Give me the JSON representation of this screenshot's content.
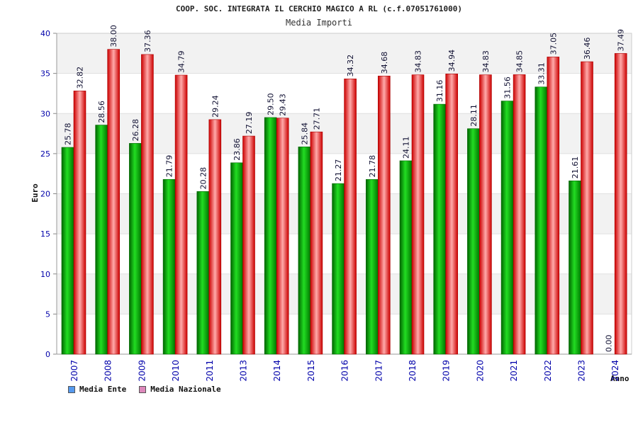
{
  "chart_data": {
    "type": "bar",
    "title": "COOP. SOC. INTEGRATA IL CERCHIO MAGICO A RL (c.f.07051761000)",
    "subtitle": "Media Importi",
    "xlabel": "Anno",
    "ylabel": "Euro",
    "ylim": [
      0,
      40
    ],
    "yticks": [
      "0",
      "5",
      "10",
      "15",
      "20",
      "25",
      "30",
      "35",
      "40"
    ],
    "grid": true,
    "legend_position": "bottom-left",
    "categories": [
      "2007",
      "2008",
      "2009",
      "2010",
      "2011",
      "2013",
      "2014",
      "2015",
      "2016",
      "2017",
      "2018",
      "2019",
      "2020",
      "2021",
      "2022",
      "2023",
      "2024"
    ],
    "series": [
      {
        "name": "Media Ente",
        "color": "#00aa00",
        "values": [
          25.78,
          28.56,
          26.28,
          21.79,
          20.28,
          23.86,
          29.5,
          25.84,
          21.27,
          21.78,
          24.11,
          31.16,
          28.11,
          31.56,
          33.31,
          21.61,
          0.0
        ],
        "labels": [
          "25.78",
          "28.56",
          "26.28",
          "21.79",
          "20.28",
          "23.86",
          "29.50",
          "25.84",
          "21.27",
          "21.78",
          "24.11",
          "31.16",
          "28.11",
          "31.56",
          "33.31",
          "21.61",
          "0.00"
        ]
      },
      {
        "name": "Media Nazionale",
        "color": "#ee2233",
        "values": [
          32.82,
          38.0,
          37.36,
          34.79,
          29.24,
          27.19,
          29.43,
          27.71,
          34.32,
          34.68,
          34.83,
          34.94,
          34.83,
          34.85,
          37.05,
          36.46,
          37.49
        ],
        "labels": [
          "32.82",
          "38.00",
          "37.36",
          "34.79",
          "29.24",
          "27.19",
          "29.43",
          "27.71",
          "34.32",
          "34.68",
          "34.83",
          "34.94",
          "34.83",
          "34.85",
          "37.05",
          "36.46",
          "37.49"
        ]
      }
    ]
  },
  "legend": {
    "items": [
      {
        "label": "Media Ente",
        "color": "#5599ee"
      },
      {
        "label": "Media Nazionale",
        "color": "#dd88bb"
      }
    ]
  }
}
